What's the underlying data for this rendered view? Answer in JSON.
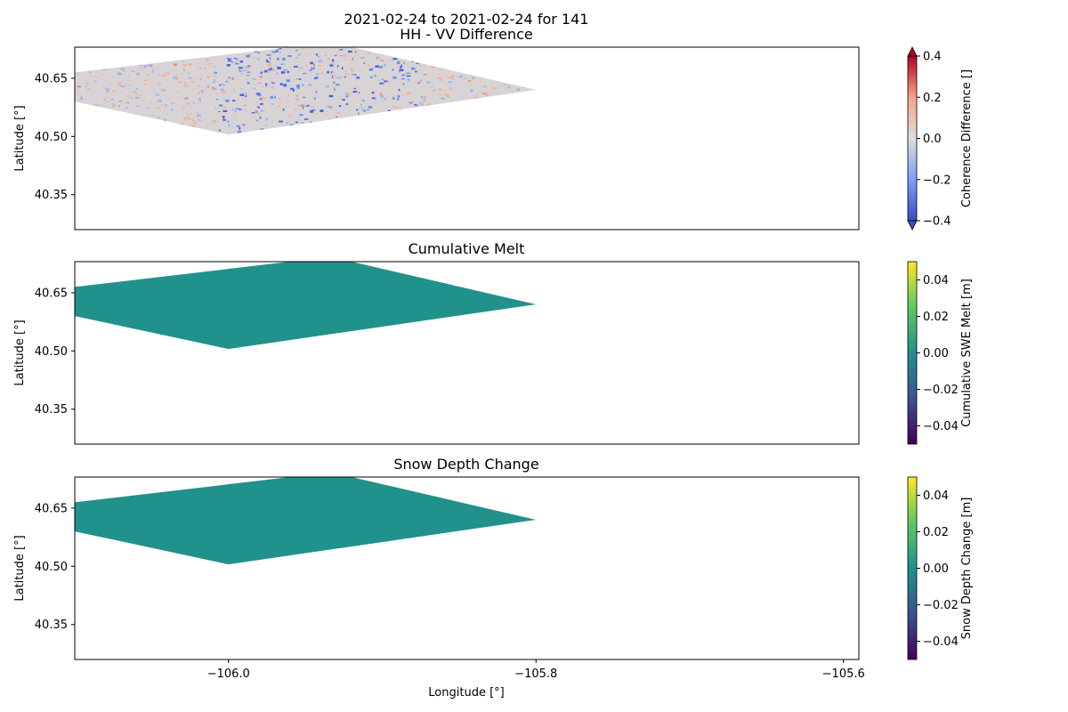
{
  "figure": {
    "title_line1": "2021-02-24 to 2021-02-24 for 141",
    "xlabel": "Longitude [°]"
  },
  "chart_data": [
    {
      "type": "heatmap",
      "title": "HH - VV Difference",
      "ylabel": "Latitude [°]",
      "xlim": [
        -106.1,
        -105.59
      ],
      "ylim": [
        40.26,
        40.73
      ],
      "yticks": [
        40.35,
        40.5,
        40.65
      ],
      "ytick_labels": [
        "40.35",
        "40.50",
        "40.65"
      ],
      "footprint_lonlat": [
        [
          -106.1,
          40.665
        ],
        [
          -105.96,
          40.73
        ],
        [
          -105.92,
          40.73
        ],
        [
          -105.8,
          40.62
        ],
        [
          -106.0,
          40.505
        ],
        [
          -106.1,
          40.59
        ]
      ],
      "fill": "noise",
      "colorbar": {
        "label": "Coherence Difference []",
        "colormap": "coolwarm",
        "range": [
          -0.4,
          0.4
        ],
        "ticks": [
          -0.4,
          -0.2,
          0.0,
          0.2,
          0.4
        ],
        "tick_labels": [
          "−0.4",
          "−0.2",
          "0.0",
          "0.2",
          "0.4"
        ],
        "extend": "both"
      }
    },
    {
      "type": "heatmap",
      "title": "Cumulative Melt",
      "ylabel": "Latitude [°]",
      "xlim": [
        -106.1,
        -105.59
      ],
      "ylim": [
        40.26,
        40.73
      ],
      "yticks": [
        40.35,
        40.5,
        40.65
      ],
      "ytick_labels": [
        "40.35",
        "40.50",
        "40.65"
      ],
      "footprint_lonlat": [
        [
          -106.1,
          40.665
        ],
        [
          -105.96,
          40.73
        ],
        [
          -105.92,
          40.73
        ],
        [
          -105.8,
          40.62
        ],
        [
          -106.0,
          40.505
        ],
        [
          -106.1,
          40.59
        ]
      ],
      "fill": "uniform",
      "fill_value": 0.0,
      "fill_color": "#21918c",
      "colorbar": {
        "label": "Cumulative SWE Melt [m]",
        "colormap": "viridis",
        "range": [
          -0.05,
          0.05
        ],
        "ticks": [
          -0.04,
          -0.02,
          0.0,
          0.02,
          0.04
        ],
        "tick_labels": [
          "−0.04",
          "−0.02",
          "0.00",
          "0.02",
          "0.04"
        ],
        "extend": "neither"
      }
    },
    {
      "type": "heatmap",
      "title": "Snow Depth Change",
      "ylabel": "Latitude [°]",
      "xlim": [
        -106.1,
        -105.59
      ],
      "ylim": [
        40.26,
        40.73
      ],
      "yticks": [
        40.35,
        40.5,
        40.65
      ],
      "ytick_labels": [
        "40.35",
        "40.50",
        "40.65"
      ],
      "xticks": [
        -106.0,
        -105.8,
        -105.6
      ],
      "xtick_labels": [
        "−106.0",
        "−105.8",
        "−105.6"
      ],
      "footprint_lonlat": [
        [
          -106.1,
          40.665
        ],
        [
          -105.96,
          40.73
        ],
        [
          -105.92,
          40.73
        ],
        [
          -105.8,
          40.62
        ],
        [
          -106.0,
          40.505
        ],
        [
          -106.1,
          40.59
        ]
      ],
      "fill": "uniform",
      "fill_value": 0.0,
      "fill_color": "#21918c",
      "colorbar": {
        "label": "Snow Depth Change [m]",
        "colormap": "viridis",
        "range": [
          -0.05,
          0.05
        ],
        "ticks": [
          -0.04,
          -0.02,
          0.0,
          0.02,
          0.04
        ],
        "tick_labels": [
          "−0.04",
          "−0.02",
          "0.00",
          "0.02",
          "0.04"
        ],
        "extend": "neither"
      }
    }
  ]
}
